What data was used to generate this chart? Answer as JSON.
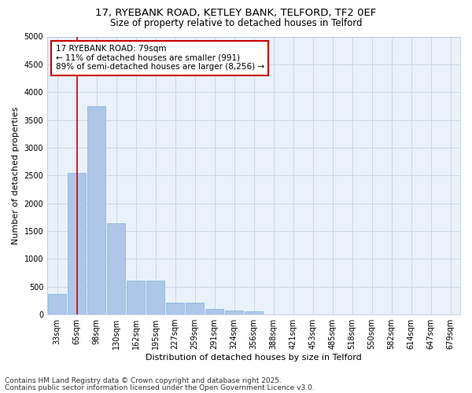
{
  "title_line1": "17, RYEBANK ROAD, KETLEY BANK, TELFORD, TF2 0EF",
  "title_line2": "Size of property relative to detached houses in Telford",
  "xlabel": "Distribution of detached houses by size in Telford",
  "ylabel": "Number of detached properties",
  "categories": [
    "33sqm",
    "65sqm",
    "98sqm",
    "130sqm",
    "162sqm",
    "195sqm",
    "227sqm",
    "259sqm",
    "291sqm",
    "324sqm",
    "356sqm",
    "388sqm",
    "421sqm",
    "453sqm",
    "485sqm",
    "518sqm",
    "550sqm",
    "582sqm",
    "614sqm",
    "647sqm",
    "679sqm"
  ],
  "values": [
    370,
    2550,
    3750,
    1640,
    610,
    610,
    210,
    210,
    100,
    65,
    55,
    0,
    0,
    0,
    0,
    0,
    0,
    0,
    0,
    0,
    0
  ],
  "bar_color": "#aec6e8",
  "bar_edge_color": "#7fb3db",
  "annotation_box_text": "17 RYEBANK ROAD: 79sqm\n← 11% of detached houses are smaller (991)\n89% of semi-detached houses are larger (8,256) →",
  "annotation_box_color": "#ffffff",
  "annotation_box_edge_color": "#cc0000",
  "vline_x": 1.0,
  "vline_color": "#cc0000",
  "ylim": [
    0,
    5000
  ],
  "yticks": [
    0,
    500,
    1000,
    1500,
    2000,
    2500,
    3000,
    3500,
    4000,
    4500,
    5000
  ],
  "grid_color": "#c8d8e8",
  "background_color": "#eaf1fa",
  "footer_line1": "Contains HM Land Registry data © Crown copyright and database right 2025.",
  "footer_line2": "Contains public sector information licensed under the Open Government Licence v3.0.",
  "title_fontsize": 9.5,
  "subtitle_fontsize": 8.5,
  "axis_label_fontsize": 8,
  "tick_fontsize": 7,
  "annotation_fontsize": 7.5,
  "footer_fontsize": 6.5
}
